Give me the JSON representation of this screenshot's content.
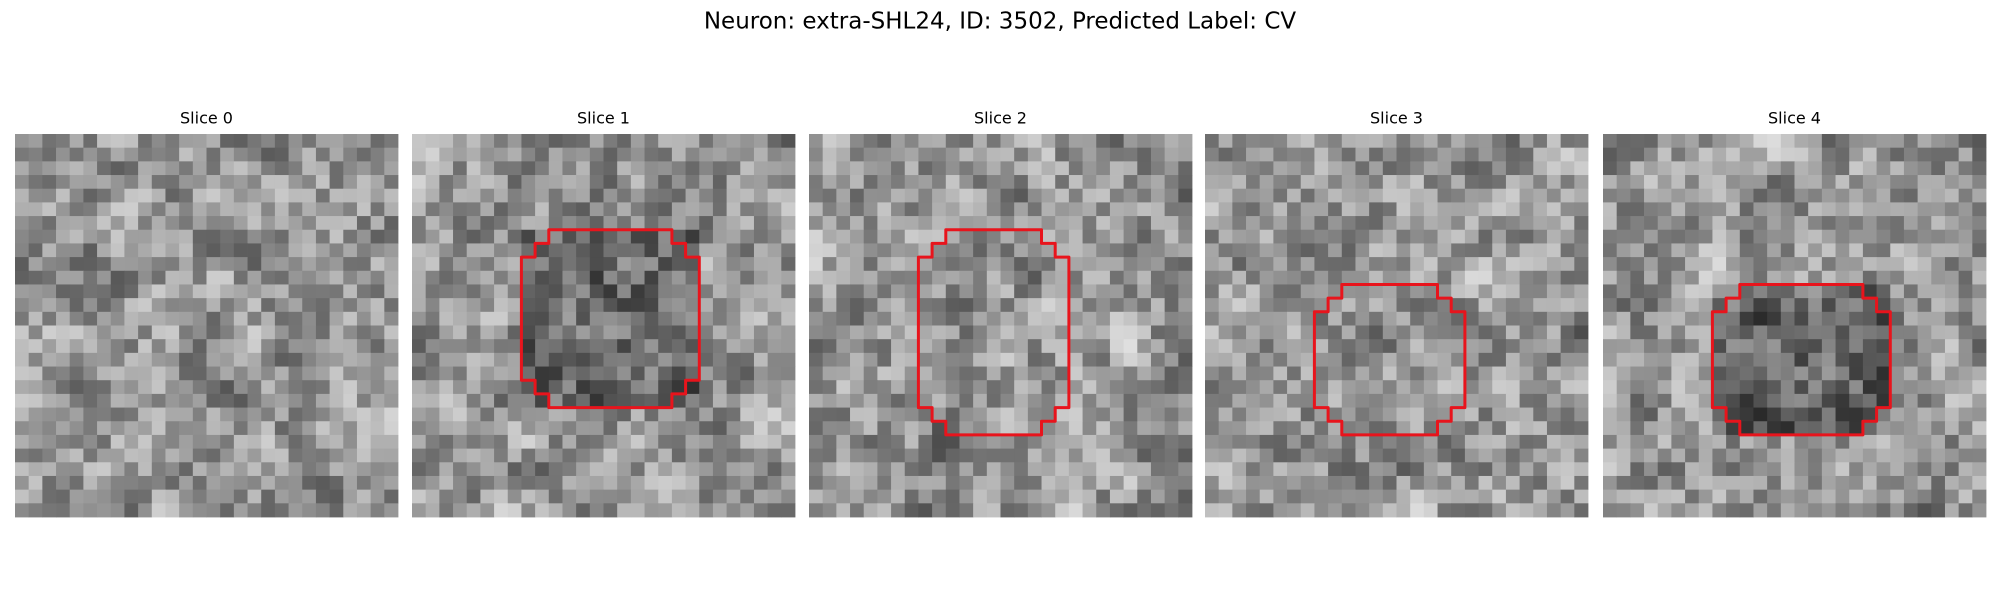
{
  "title": "Neuron: extra-SHL24, ID: 3502, Predicted Label: CV",
  "panels": [
    {
      "label": "Slice 0"
    },
    {
      "label": "Slice 1"
    },
    {
      "label": "Slice 2"
    },
    {
      "label": "Slice 3"
    },
    {
      "label": "Slice 4"
    }
  ]
}
